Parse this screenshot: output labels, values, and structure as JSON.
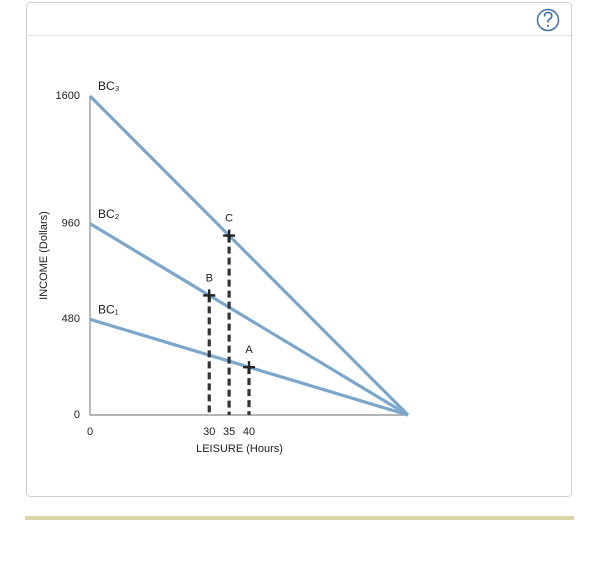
{
  "chart_data": {
    "type": "line",
    "x_label": "LEISURE (Hours)",
    "y_label": "INCOME (Dollars)",
    "xlim": [
      0,
      80
    ],
    "ylim": [
      0,
      1600
    ],
    "xticks": [
      0,
      30,
      35,
      40
    ],
    "yticks": [
      0,
      480,
      960,
      1600
    ],
    "grid": false,
    "color": "#7ba7cc",
    "series": [
      {
        "name": "BC₁",
        "x": [
          0,
          80
        ],
        "values": [
          480,
          0
        ]
      },
      {
        "name": "BC₂",
        "x": [
          0,
          80
        ],
        "values": [
          960,
          0
        ]
      },
      {
        "name": "BC₃",
        "x": [
          0,
          80
        ],
        "values": [
          1600,
          0
        ]
      }
    ],
    "points": [
      {
        "label": "A",
        "x": 40,
        "y": 240
      },
      {
        "label": "B",
        "x": 30,
        "y": 600
      },
      {
        "label": "C",
        "x": 35,
        "y": 900
      }
    ]
  }
}
